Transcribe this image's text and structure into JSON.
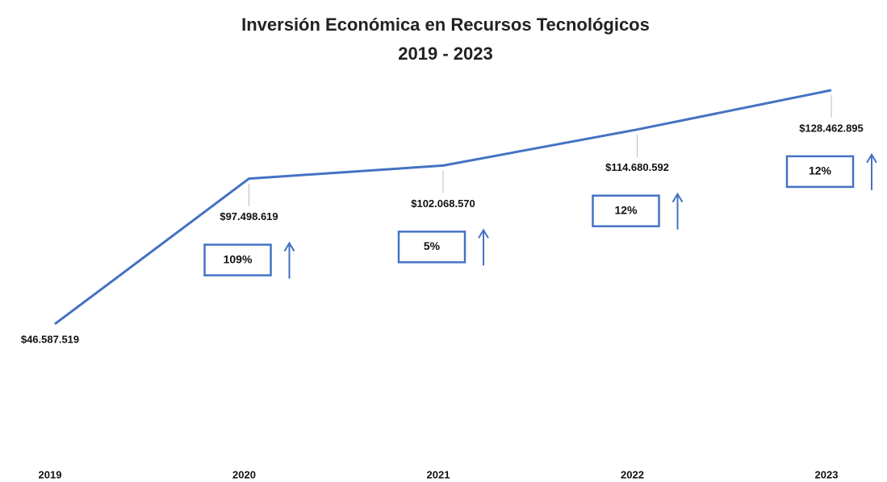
{
  "chart_data": {
    "type": "line",
    "title": "Inversión Económica en Recursos Tecnológicos",
    "subtitle": "2019 - 2023",
    "categories": [
      "2019",
      "2020",
      "2021",
      "2022",
      "2023"
    ],
    "values": [
      46587519,
      97498619,
      102068570,
      114680592,
      128462895
    ],
    "value_labels": [
      "$46.587.519",
      "$97.498.619",
      "$102.068.570",
      "$114.680.592",
      "$128.462.895"
    ],
    "growth_labels": [
      null,
      "109%",
      "5%",
      "12%",
      "12%"
    ],
    "color": "#4472c4",
    "ylim": [
      0,
      140000000
    ]
  }
}
